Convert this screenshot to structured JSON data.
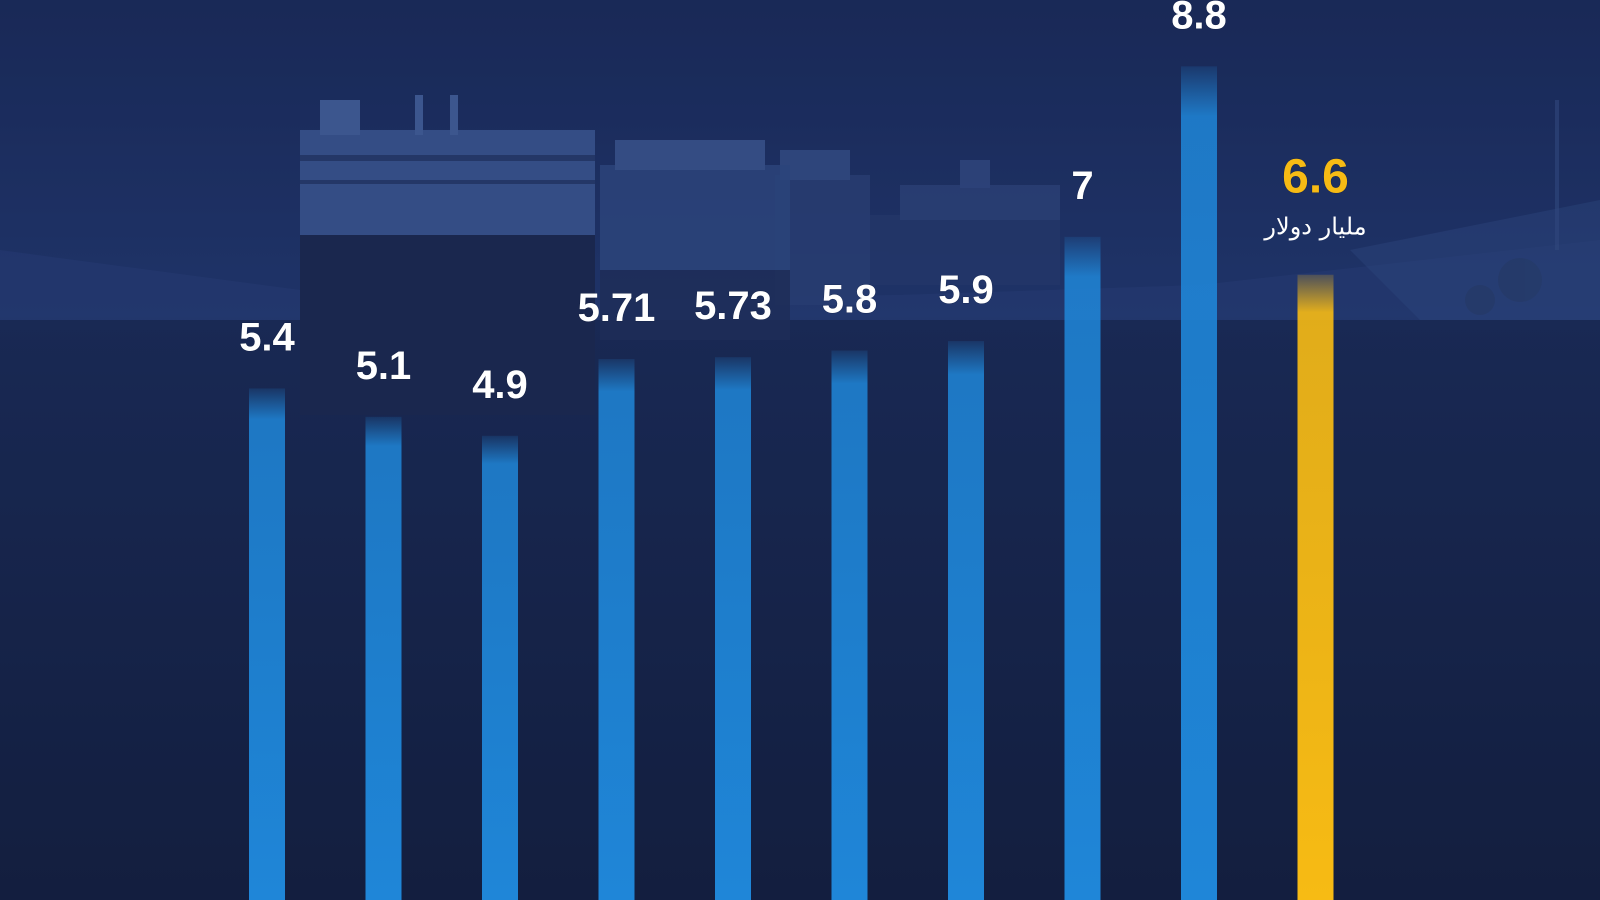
{
  "chart_data": {
    "type": "bar",
    "categories": [
      "",
      "",
      "",
      "",
      "",
      "",
      "",
      "",
      "",
      ""
    ],
    "values": [
      5.4,
      5.1,
      4.9,
      5.71,
      5.73,
      5.8,
      5.9,
      7,
      8.8,
      6.6
    ],
    "value_labels": [
      "5.4",
      "5.1",
      "4.9",
      "5.71",
      "5.73",
      "5.8",
      "5.9",
      "7",
      "8.8",
      "6.6"
    ],
    "highlight_index": 9,
    "highlight_unit": "مليار دولار",
    "ylim": [
      0,
      9.5
    ],
    "grid": false,
    "colors": {
      "bar": "#1f86d8",
      "bar_highlight": "#f7bb14",
      "label": "#ffffff",
      "label_highlight": "#f7bb14",
      "background": "#17244a"
    }
  },
  "background": {
    "description_icon": "ships-canal-photo"
  }
}
